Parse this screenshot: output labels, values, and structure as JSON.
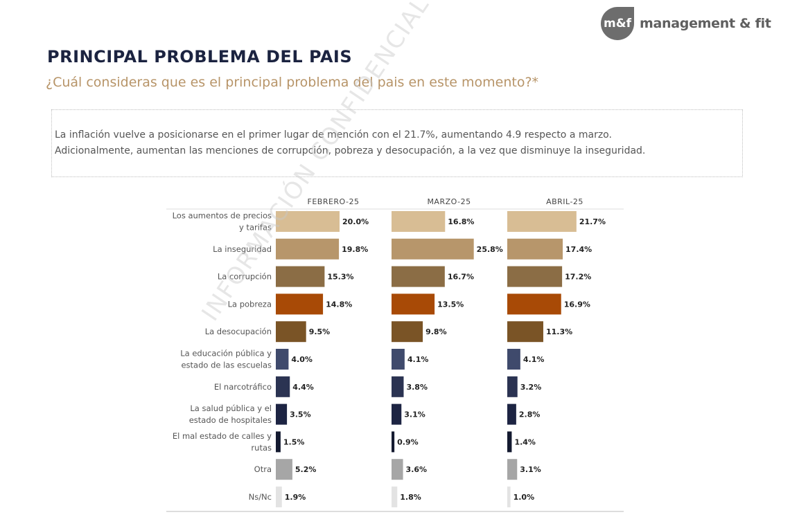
{
  "logo": {
    "mark": "m&f",
    "text": "management & fit"
  },
  "header": {
    "title": "PRINCIPAL PROBLEMA DEL PAIS",
    "subtitle": "¿Cuál consideras que es el principal problema del pais en este momento?*"
  },
  "note": {
    "line1": "La inflación vuelve a posicionarse en el primer lugar de mención con el 21.7%, aumentando 4.9 respecto a marzo.",
    "line2": "Adicionalmente, aumentan las menciones de corrupción, pobreza y desocupación, a la vez que disminuye la inseguridad."
  },
  "watermark": "INFORMACIÓN CONFIDENCIAL",
  "chart_data": {
    "type": "bar",
    "orientation": "horizontal",
    "unit": "%",
    "categories": [
      [
        "Los aumentos de precios",
        "y tarifas"
      ],
      [
        "La inseguridad"
      ],
      [
        "La corrupción"
      ],
      [
        "La pobreza"
      ],
      [
        "La desocupación"
      ],
      [
        "La educación pública y",
        "estado de las escuelas"
      ],
      [
        "El narcotráfico"
      ],
      [
        "La salud pública y el",
        "estado de hospitales"
      ],
      [
        "El mal estado de calles y",
        "rutas"
      ],
      [
        "Otra"
      ],
      [
        "Ns/Nc"
      ]
    ],
    "colors": [
      "#d8bd94",
      "#b7966b",
      "#8b6d45",
      "#a84a06",
      "#7a5426",
      "#3f4a6c",
      "#2b3352",
      "#1d2443",
      "#141a30",
      "#a6a6a6",
      "#e3e3e3"
    ],
    "series": [
      {
        "name": "FEBRERO-25",
        "values": [
          20.0,
          19.8,
          15.3,
          14.8,
          9.5,
          4.0,
          4.4,
          3.5,
          1.5,
          5.2,
          1.9
        ]
      },
      {
        "name": "MARZO-25",
        "values": [
          16.8,
          25.8,
          16.7,
          13.5,
          9.8,
          4.1,
          3.8,
          3.1,
          0.9,
          3.6,
          1.8
        ]
      },
      {
        "name": "ABRIL-25",
        "values": [
          21.7,
          17.4,
          17.2,
          16.9,
          11.3,
          4.1,
          3.2,
          2.8,
          1.4,
          3.1,
          1.0
        ]
      }
    ]
  }
}
